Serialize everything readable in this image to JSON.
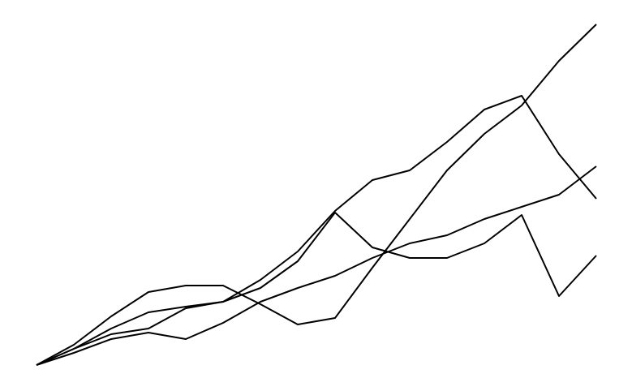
{
  "chart_data": {
    "type": "line",
    "x": [
      0,
      1,
      2,
      3,
      4,
      5,
      6,
      7,
      8,
      9,
      10,
      11,
      12,
      13,
      14,
      15
    ],
    "xlim": [
      0,
      15
    ],
    "ylim": [
      0,
      420
    ],
    "series": [
      {
        "color": "#000000",
        "values": [
          0,
          25,
          60,
          90,
          98,
          98,
          75,
          50,
          58,
          120,
          180,
          240,
          285,
          320,
          375,
          420
        ]
      },
      {
        "color": "#000000",
        "values": [
          0,
          20,
          45,
          65,
          72,
          78,
          105,
          140,
          190,
          228,
          240,
          275,
          315,
          332,
          260,
          205
        ]
      },
      {
        "color": "#000000",
        "values": [
          0,
          20,
          38,
          45,
          70,
          78,
          95,
          128,
          188,
          145,
          132,
          132,
          150,
          185,
          85,
          135
        ]
      },
      {
        "color": "#000000",
        "values": [
          0,
          15,
          32,
          40,
          32,
          52,
          78,
          95,
          110,
          132,
          150,
          160,
          180,
          195,
          210,
          245
        ]
      }
    ]
  }
}
